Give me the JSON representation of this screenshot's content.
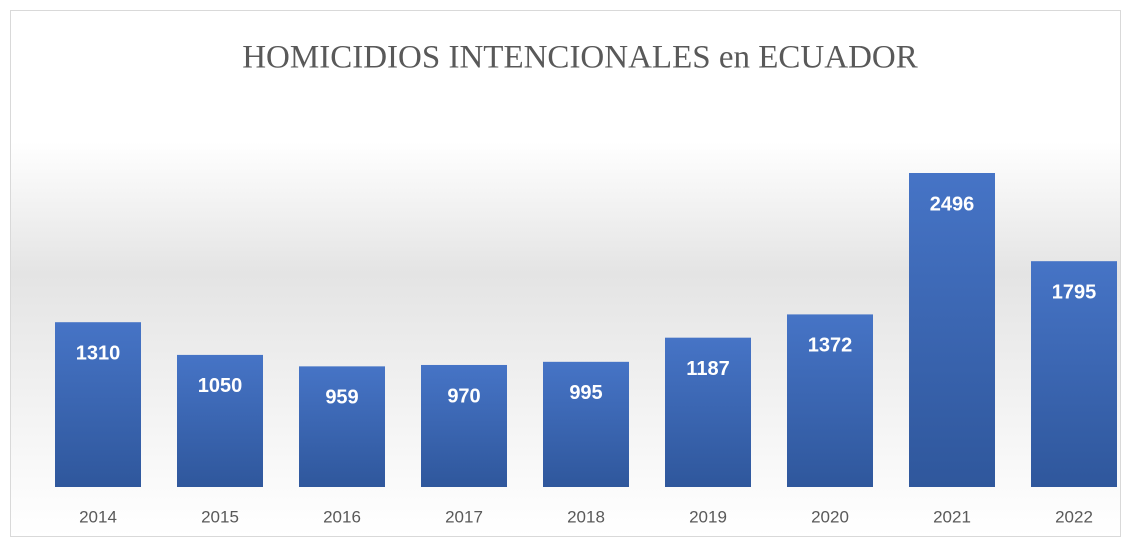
{
  "chart_data": {
    "type": "bar",
    "title": "HOMICIDIOS INTENCIONALES en ECUADOR",
    "categories": [
      "2014",
      "2015",
      "2016",
      "2017",
      "2018",
      "2019",
      "2020",
      "2021",
      "2022"
    ],
    "values": [
      1310,
      1050,
      959,
      970,
      995,
      1187,
      1372,
      2496,
      1795
    ],
    "color": "#4472c4"
  }
}
